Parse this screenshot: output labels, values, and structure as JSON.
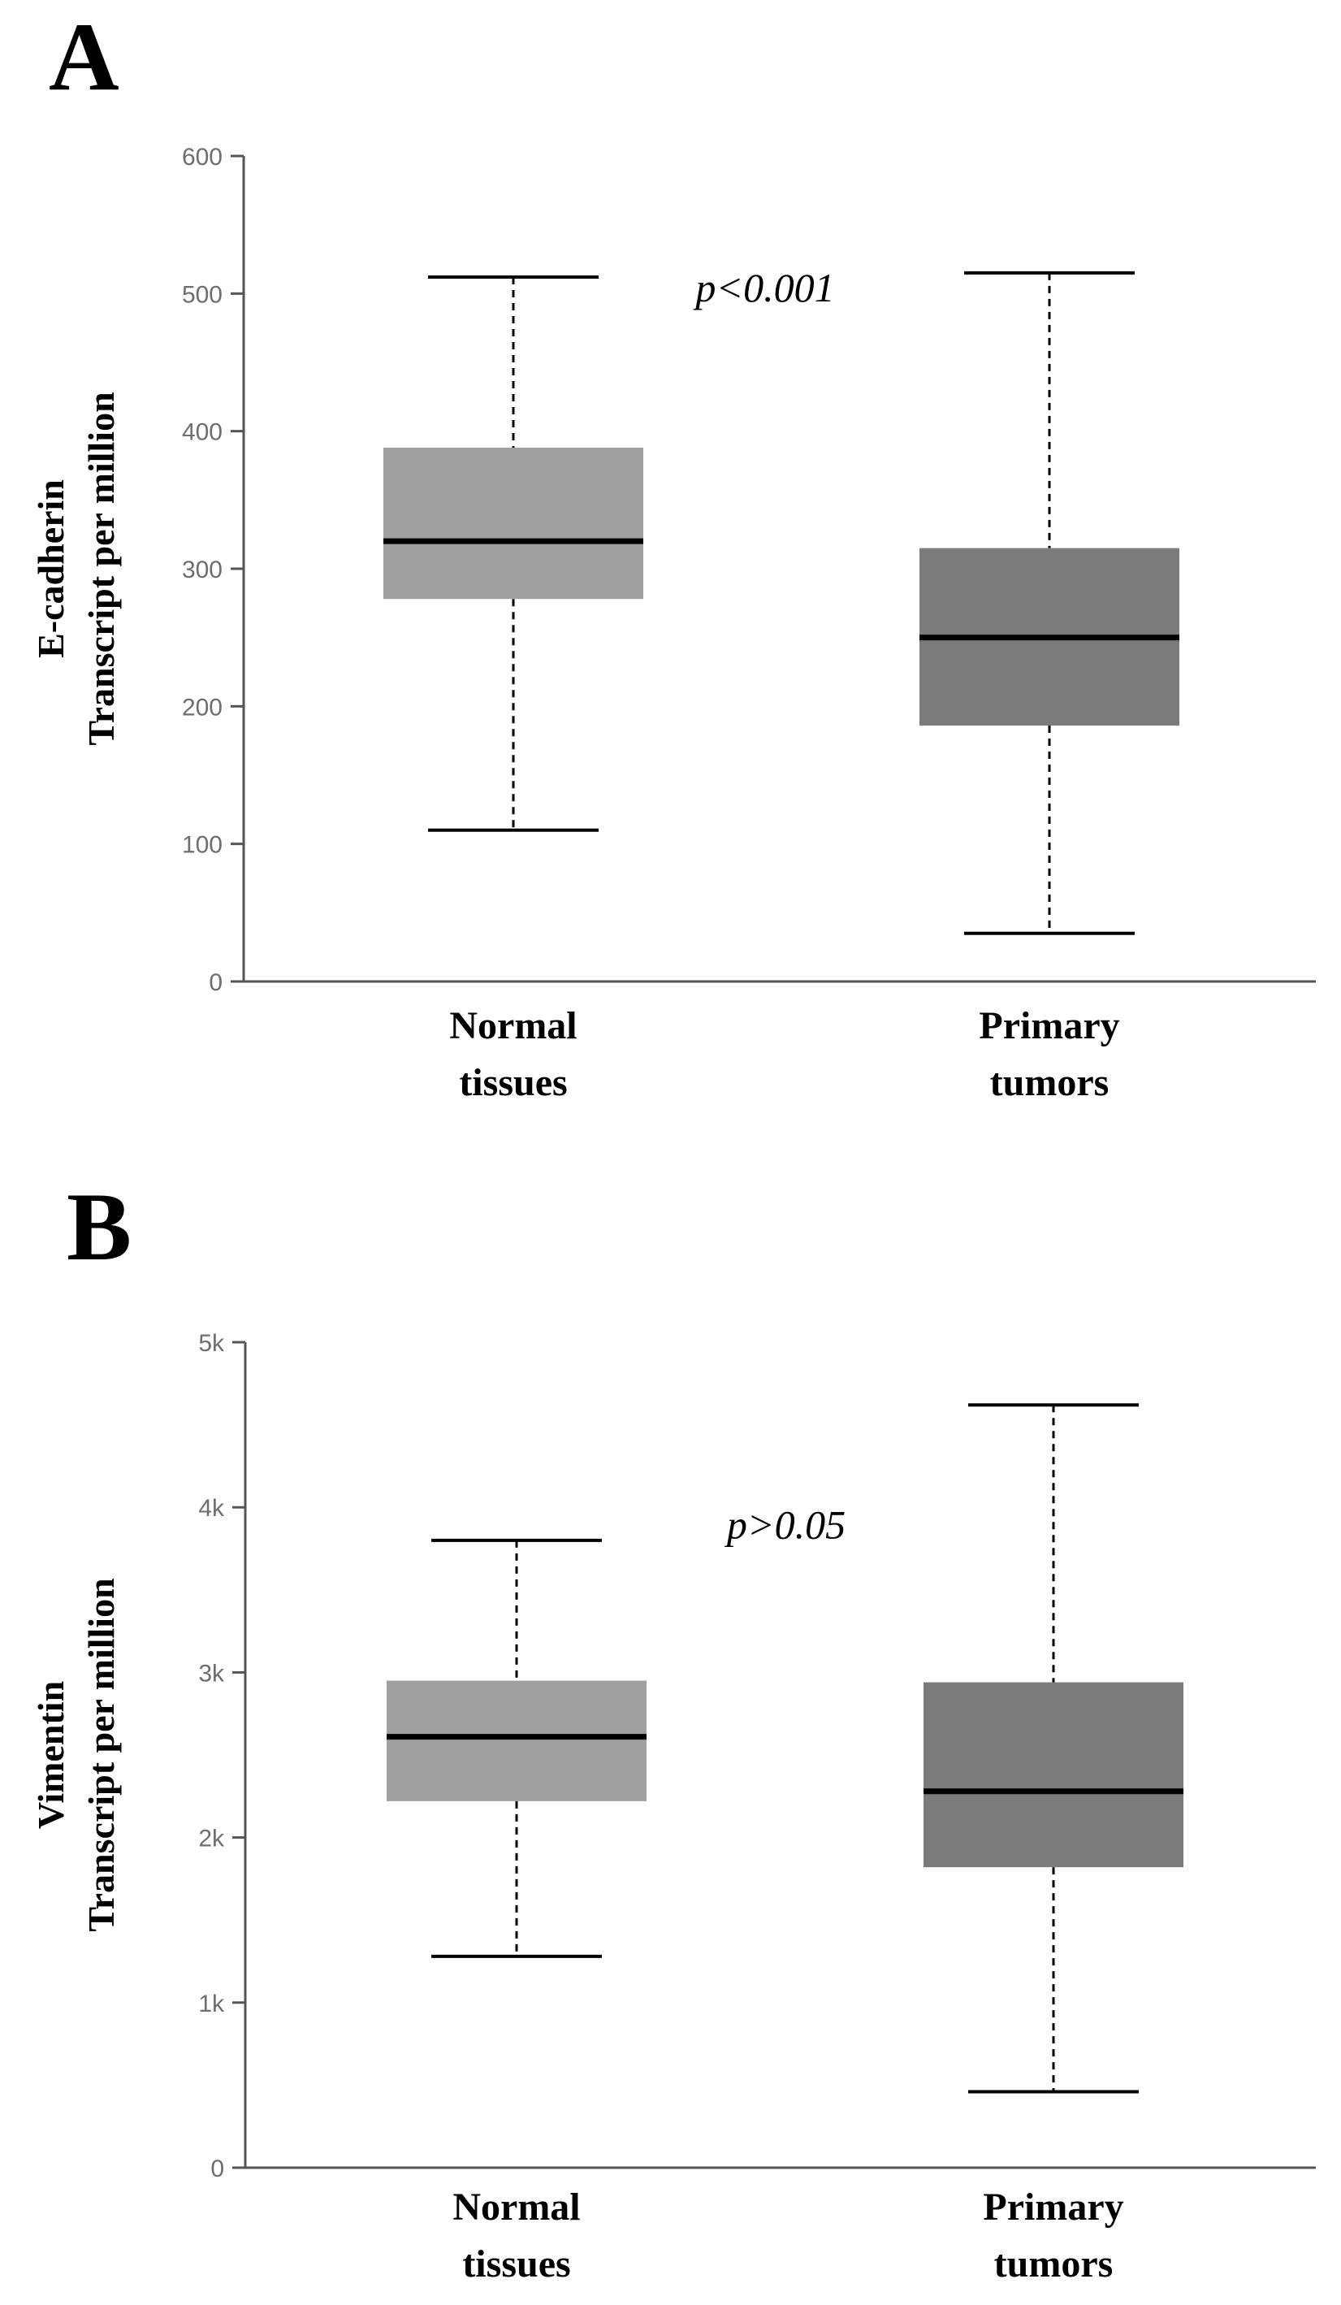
{
  "chart_data": [
    {
      "panel": "A",
      "type": "box",
      "ylabel_line1": "E-cadherin",
      "ylabel_line2": "Transcript per million",
      "ylim": [
        0,
        600
      ],
      "yticks": [
        {
          "value": 0,
          "label": "0"
        },
        {
          "value": 100,
          "label": "100"
        },
        {
          "value": 200,
          "label": "200"
        },
        {
          "value": 300,
          "label": "300"
        },
        {
          "value": 400,
          "label": "400"
        },
        {
          "value": 500,
          "label": "500"
        },
        {
          "value": 600,
          "label": "600"
        }
      ],
      "annotation": "p<0.001",
      "annotation_value": 505,
      "series": [
        {
          "name_line1": "Normal",
          "name_line2": "tissues",
          "min": 110,
          "q1": 278,
          "median": 320,
          "q3": 388,
          "max": 512,
          "color": "#a0a0a0"
        },
        {
          "name_line1": "Primary",
          "name_line2": "tumors",
          "min": 35,
          "q1": 186,
          "median": 250,
          "q3": 315,
          "max": 515,
          "color": "#7b7b7b"
        }
      ]
    },
    {
      "panel": "B",
      "type": "box",
      "ylabel_line1": "Vimentin",
      "ylabel_line2": "Transcript per million",
      "ylim": [
        0,
        5000
      ],
      "yticks": [
        {
          "value": 0,
          "label": "0"
        },
        {
          "value": 1000,
          "label": "1k"
        },
        {
          "value": 2000,
          "label": "2k"
        },
        {
          "value": 3000,
          "label": "3k"
        },
        {
          "value": 4000,
          "label": "4k"
        },
        {
          "value": 5000,
          "label": "5k"
        }
      ],
      "annotation": "p>0.05",
      "annotation_value": 3900,
      "series": [
        {
          "name_line1": "Normal",
          "name_line2": "tissues",
          "min": 1280,
          "q1": 2220,
          "median": 2610,
          "q3": 2950,
          "max": 3800,
          "color": "#a0a0a0"
        },
        {
          "name_line1": "Primary",
          "name_line2": "tumors",
          "min": 460,
          "q1": 1820,
          "median": 2280,
          "q3": 2940,
          "max": 4620,
          "color": "#7b7b7b"
        }
      ]
    }
  ]
}
